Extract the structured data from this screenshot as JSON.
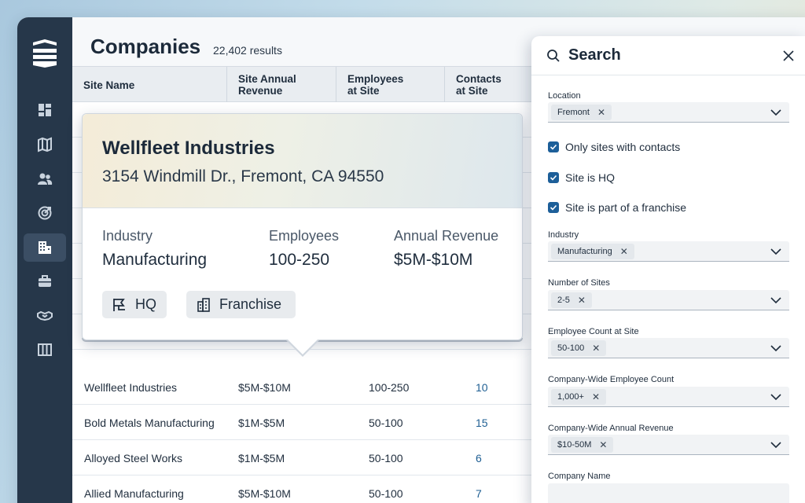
{
  "colors": {
    "sidebar": "#26374a",
    "accent": "#1d5f99",
    "link": "#1f5f93"
  },
  "sidebar": {
    "logo": "stacked-layers-logo",
    "items": [
      {
        "icon": "dashboard-icon"
      },
      {
        "icon": "map-icon"
      },
      {
        "icon": "people-icon"
      },
      {
        "icon": "target-icon"
      },
      {
        "icon": "building-icon",
        "active": true
      },
      {
        "icon": "briefcase-icon"
      },
      {
        "icon": "handshake-icon"
      },
      {
        "icon": "columns-icon"
      }
    ]
  },
  "header": {
    "title": "Companies",
    "results": "22,402 results"
  },
  "table": {
    "columns": [
      "Site Name",
      "Site Annual Revenue",
      "Employees at Site",
      "Contacts at Site"
    ],
    "rows": [
      {
        "name": "Wellfleet Industries",
        "revenue": "$5M-$10M",
        "employees": "100-250",
        "contacts": "10"
      },
      {
        "name": "Bold Metals Manufacturing",
        "revenue": "$1M-$5M",
        "employees": "50-100",
        "contacts": "15"
      },
      {
        "name": "Alloyed Steel Works",
        "revenue": "$1M-$5M",
        "employees": "50-100",
        "contacts": "6"
      },
      {
        "name": "Allied Manufacturing",
        "revenue": "$5M-$10M",
        "employees": "50-100",
        "contacts": "7"
      }
    ]
  },
  "popover": {
    "name": "Wellfleet Industries",
    "address": "3154 Windmill Dr., Fremont, CA 94550",
    "industry_label": "Industry",
    "industry_value": "Manufacturing",
    "employees_label": "Employees",
    "employees_value": "100-250",
    "revenue_label": "Annual Revenue",
    "revenue_value": "$5M-$10M",
    "tags": [
      {
        "label": "HQ",
        "icon": "flag-icon"
      },
      {
        "label": "Franchise",
        "icon": "buildings-icon"
      }
    ]
  },
  "search": {
    "title": "Search",
    "location": {
      "label": "Location",
      "chip": "Fremont"
    },
    "checks": [
      "Only sites with contacts",
      "Site is HQ",
      "Site is part of a franchise"
    ],
    "industry": {
      "label": "Industry",
      "chip": "Manufacturing"
    },
    "num_sites": {
      "label": "Number of Sites",
      "chip": "2-5"
    },
    "employee_count": {
      "label": "Employee Count at Site",
      "chip": "50-100"
    },
    "company_employee_count": {
      "label": "Company-Wide Employee Count",
      "chip": "1,000+"
    },
    "company_revenue": {
      "label": "Company-Wide Annual Revenue",
      "chip": "$10-50M"
    },
    "company_name": {
      "label": "Company Name"
    }
  }
}
